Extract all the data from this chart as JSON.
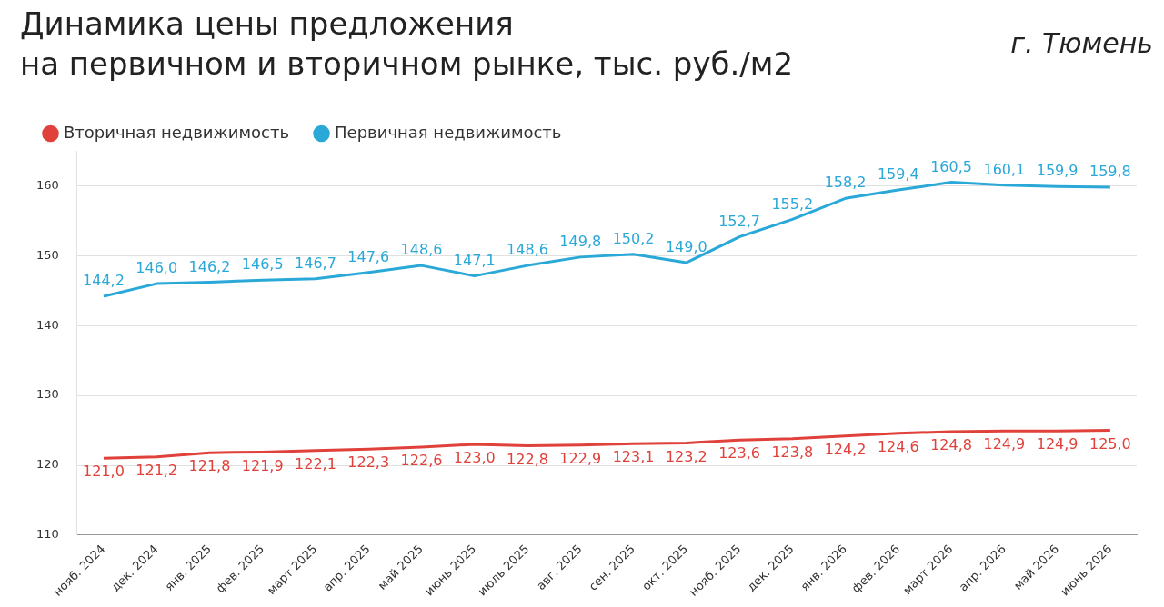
{
  "chart_data": {
    "type": "line",
    "title": "Динамика цены предложения\nна первичном и вторичном рынке, тыс. руб./м2",
    "subtitle": "г. Тюмень",
    "categories": [
      "нояб. 2024",
      "дек. 2024",
      "янв. 2025",
      "фев. 2025",
      "март 2025",
      "апр. 2025",
      "май 2025",
      "июнь 2025",
      "июль 2025",
      "авг. 2025",
      "сен. 2025",
      "окт. 2025",
      "нояб. 2025",
      "дек. 2025",
      "янв. 2026",
      "фев. 2026",
      "март 2026",
      "апр. 2026",
      "май 2026",
      "июнь 2026"
    ],
    "series": [
      {
        "name": "Вторичная недвижимость",
        "color": "#e0413a",
        "values": [
          121.0,
          121.2,
          121.8,
          121.9,
          122.1,
          122.3,
          122.6,
          123.0,
          122.8,
          122.9,
          123.1,
          123.2,
          123.6,
          123.8,
          124.2,
          124.6,
          124.8,
          124.9,
          124.9,
          125.0
        ],
        "value_labels": [
          "121,0",
          "121,2",
          "121,8",
          "121,9",
          "122,1",
          "122,3",
          "122,6",
          "123,0",
          "122,8",
          "122,9",
          "123,1",
          "123,2",
          "123,6",
          "123,8",
          "124,2",
          "124,6",
          "124,8",
          "124,9",
          "124,9",
          "125,0"
        ]
      },
      {
        "name": "Первичная недвижимость",
        "color": "#2aa8d8",
        "values": [
          144.2,
          146.0,
          146.2,
          146.5,
          146.7,
          147.6,
          148.6,
          147.1,
          148.6,
          149.8,
          150.2,
          149.0,
          152.7,
          155.2,
          158.2,
          159.4,
          160.5,
          160.1,
          159.9,
          159.8
        ],
        "value_labels": [
          "144,2",
          "146,0",
          "146,2",
          "146,5",
          "146,7",
          "147,6",
          "148,6",
          "147,1",
          "148,6",
          "149,8",
          "150,2",
          "149,0",
          "152,7",
          "155,2",
          "158,2",
          "159,4",
          "160,5",
          "160,1",
          "159,9",
          "159,8"
        ]
      }
    ],
    "ylim": [
      110,
      165
    ],
    "yticks": [
      110,
      120,
      130,
      140,
      150,
      160
    ],
    "grid": "y",
    "legend": "top left",
    "marker": "none",
    "line_style": "solid"
  }
}
